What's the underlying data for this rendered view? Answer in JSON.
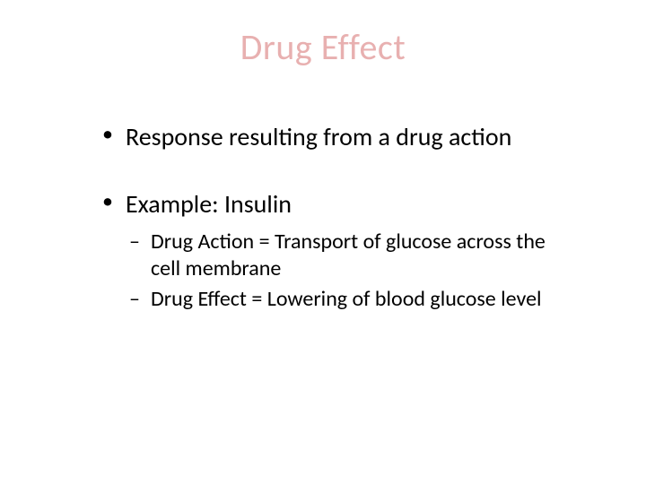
{
  "slide": {
    "title": "Drug Effect",
    "title_color": "#e8b0b0",
    "title_fontsize": 40,
    "body_fontsize_lvl1": 28,
    "body_fontsize_lvl2": 24,
    "text_color": "#000000",
    "background_color": "#ffffff",
    "bullets": {
      "b1": "Response resulting from a drug action",
      "b2": "Example: Insulin",
      "b2_sub1": "Drug Action = Transport of glucose across the cell membrane",
      "b2_sub2": "Drug Effect = Lowering of blood glucose level"
    }
  }
}
